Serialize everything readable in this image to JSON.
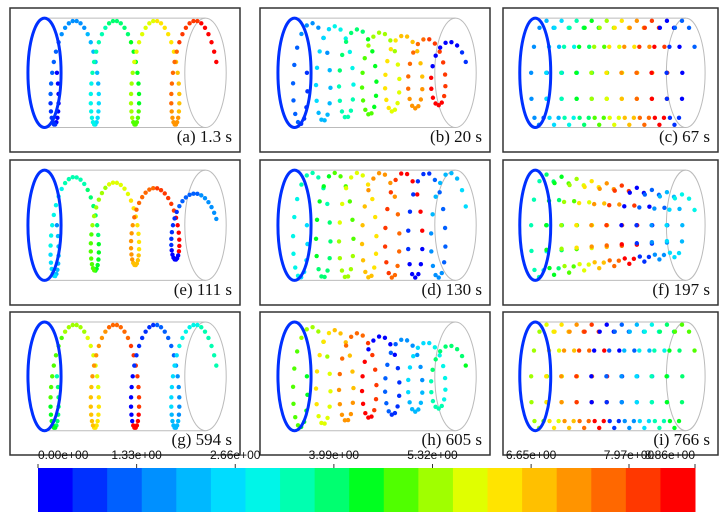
{
  "panels": [
    {
      "label": "(a) 1.3 s"
    },
    {
      "label": "(b) 20 s"
    },
    {
      "label": "(c) 67 s"
    },
    {
      "label": "(e) 111 s"
    },
    {
      "label": "(d) 130 s"
    },
    {
      "label": "(f) 197 s"
    },
    {
      "label": "(g) 594 s"
    },
    {
      "label": "(h) 605 s"
    },
    {
      "label": "(i) 766 s"
    }
  ],
  "colorbar": {
    "lim": [
      0,
      8.86
    ],
    "ticks": [
      {
        "value": 0,
        "label": "0.00e+00"
      },
      {
        "value": 1.33,
        "label": "1.33e+00"
      },
      {
        "value": 2.66,
        "label": "2.66e+00"
      },
      {
        "value": 3.99,
        "label": "3.99e+00"
      },
      {
        "value": 5.32,
        "label": "5.32e+00"
      },
      {
        "value": 6.65,
        "label": "6.65e+00"
      },
      {
        "value": 7.97,
        "label": "7.97e+00"
      },
      {
        "value": 8.86,
        "label": "8.86e+00"
      }
    ],
    "colors": [
      "#0000ff",
      "#0030ff",
      "#0060ff",
      "#0090ff",
      "#00b8ff",
      "#00dcff",
      "#00f5e8",
      "#00ffb0",
      "#00ff70",
      "#00ff20",
      "#50ff00",
      "#a0ff00",
      "#e0ff00",
      "#ffe400",
      "#ffc000",
      "#ff9400",
      "#ff6800",
      "#ff3800",
      "#ff0000"
    ]
  }
}
